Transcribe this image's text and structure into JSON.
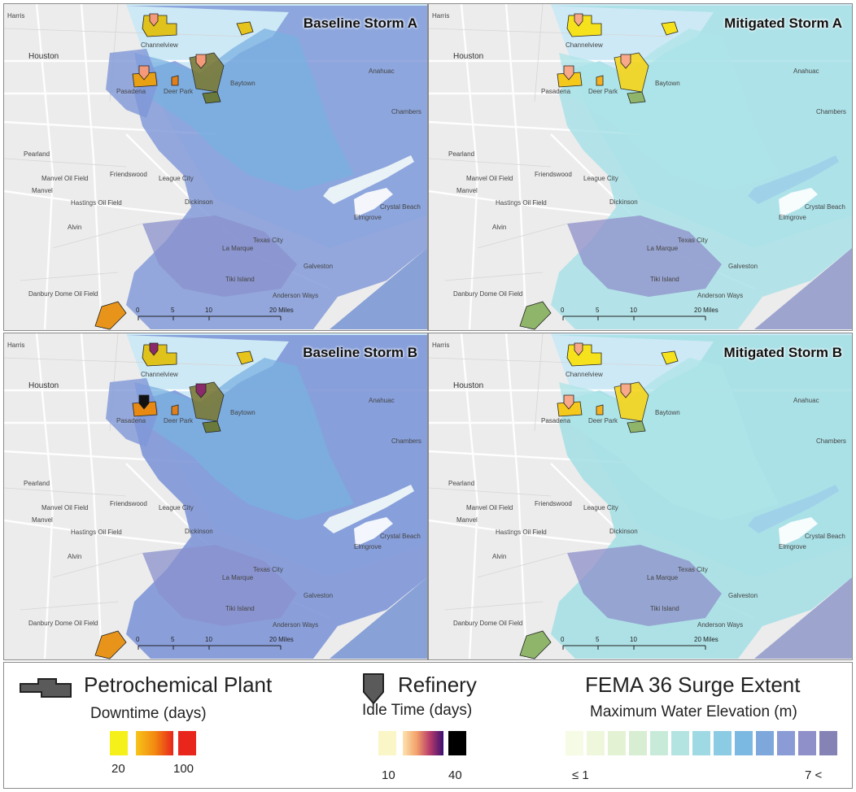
{
  "panels": [
    {
      "title": "Baseline Storm A",
      "scenario": "baseline",
      "storm": "A"
    },
    {
      "title": "Mitigated Storm A",
      "scenario": "mitigated",
      "storm": "A"
    },
    {
      "title": "Baseline Storm B",
      "scenario": "baseline",
      "storm": "B"
    },
    {
      "title": "Mitigated Storm B",
      "scenario": "mitigated",
      "storm": "B"
    }
  ],
  "places": {
    "harris": "Harris",
    "houston": "Houston",
    "channelview": "Channelview",
    "anahuac": "Anahuac",
    "pasadena": "Pasadena",
    "deer_park": "Deer Park",
    "baytown": "Baytown",
    "chambers": "Chambers",
    "pearland": "Pearland",
    "friendswood": "Friendswood",
    "manvel_oil_field": "Manvel Oil Field",
    "manvel": "Manvel",
    "hastings_oil_field": "Hastings Oil Field",
    "league_city": "League City",
    "dickinson": "Dickinson",
    "alvin": "Alvin",
    "texas_city": "Texas City",
    "la_marque": "La Marque",
    "elmgrove": "Elmgrove",
    "crystal_beach": "Crystal Beach",
    "galveston": "Galveston",
    "tiki_island": "Tiki Island",
    "anderson_ways": "Anderson Ways",
    "danbury_dome_oil_field": "Danbury Dome Oil Field"
  },
  "scale_bar": {
    "ticks": [
      "0",
      "5",
      "10",
      "20 Miles"
    ]
  },
  "legend": {
    "plant": {
      "title": "Petrochemical Plant",
      "subtitle": "Downtime (days)",
      "min_label": "20",
      "max_label": "100",
      "colors": [
        "#f5ef1a",
        "#f28a10",
        "#e8261c"
      ]
    },
    "refinery": {
      "title": "Refinery",
      "subtitle": "Idle Time (days)",
      "min_label": "10",
      "max_label": "40",
      "colors": [
        "#fbf6c8",
        "#f4a36b",
        "#b83b6b",
        "#3b0f70",
        "#000000"
      ]
    },
    "surge": {
      "title": "FEMA 36 Surge Extent",
      "subtitle": "Maximum Water Elevation (m)",
      "min_label": "≤ 1",
      "max_label": "7 <",
      "colors": [
        "#f6fbe6",
        "#eef7dc",
        "#e4f2d4",
        "#d7eed2",
        "#c8ebd9",
        "#b4e4e2",
        "#9fdae4",
        "#8ccbe4",
        "#7cb9e2",
        "#7ea8dc",
        "#8a9bd6",
        "#8f8fca",
        "#8583b6"
      ]
    }
  },
  "colors": {
    "land": "#ececec",
    "water_light": "#cde9f5",
    "road": "#ffffff",
    "surge_deep": "#7f97d8",
    "surge_mid": "#7ab0e0",
    "surge_shallow": "#a6e0e6"
  }
}
